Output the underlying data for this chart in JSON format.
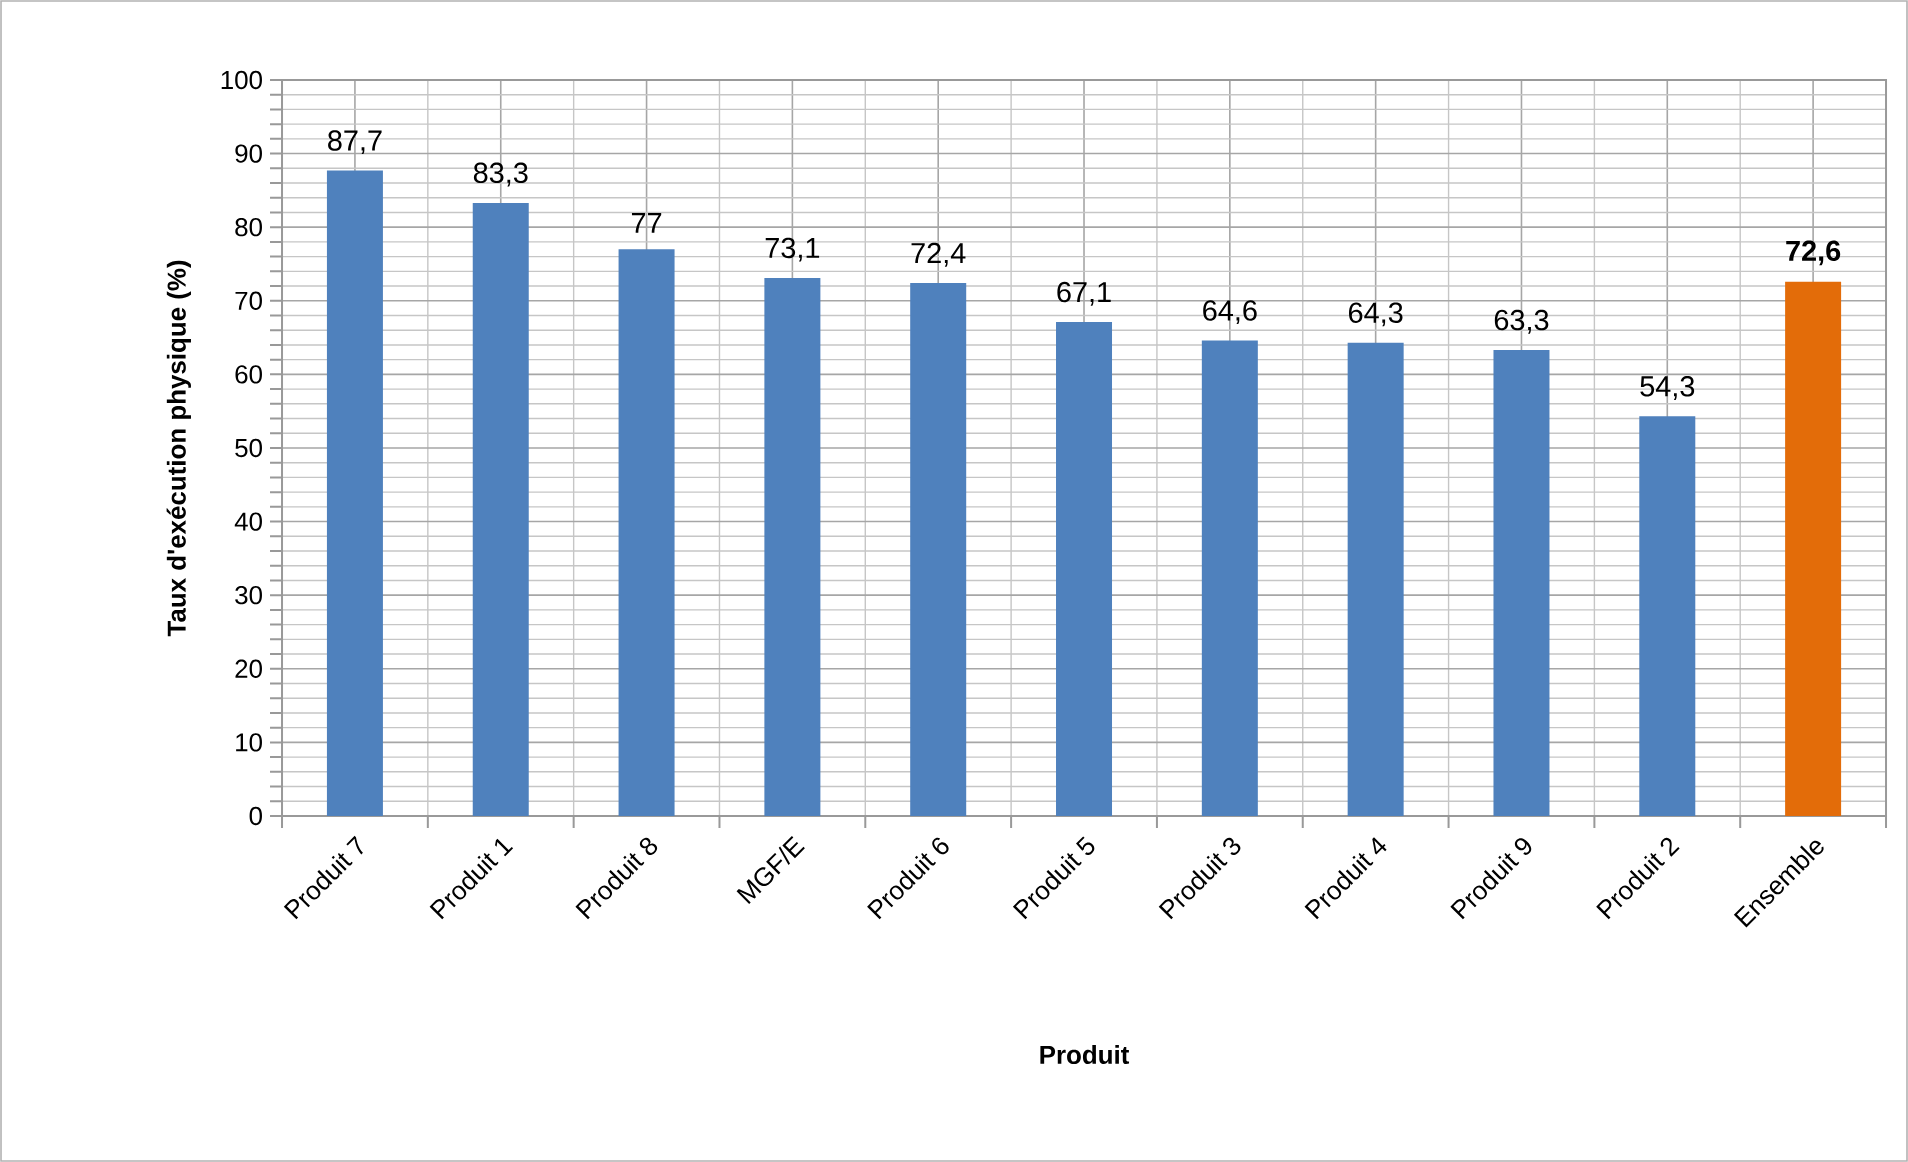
{
  "chart_data": {
    "type": "bar",
    "xlabel": "Produit",
    "ylabel": "Taux d'exécution physique (%)",
    "categories": [
      "Produit 7",
      "Produit 1",
      "Produit 8",
      "MGF/E",
      "Produit 6",
      "Produit 5",
      "Produit 3",
      "Produit 4",
      "Produit 9",
      "Produit 2",
      "Ensemble"
    ],
    "values": [
      87.7,
      83.3,
      77,
      73.1,
      72.4,
      67.1,
      64.6,
      64.3,
      63.3,
      54.3,
      72.6
    ],
    "colors": [
      "#4f81bd",
      "#4f81bd",
      "#4f81bd",
      "#4f81bd",
      "#4f81bd",
      "#4f81bd",
      "#4f81bd",
      "#4f81bd",
      "#4f81bd",
      "#4f81bd",
      "#e36c09"
    ],
    "value_labels": [
      "87,7",
      "83,3",
      "77",
      "73,1",
      "72,4",
      "67,1",
      "64,6",
      "64,3",
      "63,3",
      "54,3",
      "**72,6**"
    ],
    "ylim": [
      0,
      100
    ],
    "yticks": [
      0,
      10,
      20,
      30,
      40,
      50,
      60,
      70,
      80,
      90,
      100
    ],
    "grid": true
  }
}
